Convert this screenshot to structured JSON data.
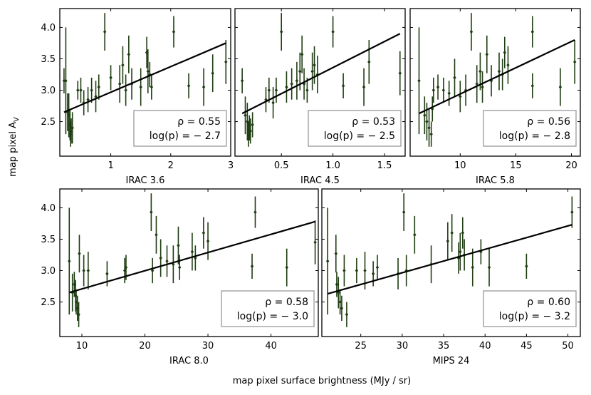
{
  "figure": {
    "ylabel": "map pixel A",
    "ylabel_sub": "V",
    "xlabel": "map pixel surface brightness (MJy / sr)"
  },
  "colors": {
    "points": "#1f3d12",
    "fit": "#000000",
    "legend_border": "#999999"
  },
  "chart_data": [
    {
      "type": "scatter",
      "xlabel": "IRAC 3.6",
      "xlim": [
        0.15,
        3.0
      ],
      "ylim": [
        1.95,
        4.3
      ],
      "xticks": [
        1,
        2,
        3
      ],
      "yticks": [
        2.5,
        3.0,
        3.5,
        4.0
      ],
      "fit": [
        [
          0.22,
          2.65
        ],
        [
          2.92,
          3.75
        ]
      ],
      "stats": {
        "rho": "ρ = 0.55",
        "logp": "log(p) = − 2.7"
      },
      "points": [
        {
          "x": 0.22,
          "y": 3.15,
          "e": 0.2
        },
        {
          "x": 0.25,
          "y": 3.15,
          "e": 0.85
        },
        {
          "x": 0.28,
          "y": 2.65,
          "e": 0.3
        },
        {
          "x": 0.3,
          "y": 2.6,
          "e": 0.35
        },
        {
          "x": 0.32,
          "y": 2.45,
          "e": 0.25
        },
        {
          "x": 0.33,
          "y": 2.3,
          "e": 0.2
        },
        {
          "x": 0.34,
          "y": 2.35,
          "e": 0.2
        },
        {
          "x": 0.36,
          "y": 2.4,
          "e": 0.25
        },
        {
          "x": 0.45,
          "y": 3.0,
          "e": 0.15
        },
        {
          "x": 0.5,
          "y": 3.0,
          "e": 0.2
        },
        {
          "x": 0.55,
          "y": 2.8,
          "e": 0.2
        },
        {
          "x": 0.62,
          "y": 2.85,
          "e": 0.2
        },
        {
          "x": 0.68,
          "y": 3.0,
          "e": 0.2
        },
        {
          "x": 0.75,
          "y": 2.9,
          "e": 0.25
        },
        {
          "x": 0.8,
          "y": 3.05,
          "e": 0.2
        },
        {
          "x": 0.9,
          "y": 3.93,
          "e": 0.3
        },
        {
          "x": 1.0,
          "y": 3.2,
          "e": 0.2
        },
        {
          "x": 1.15,
          "y": 3.1,
          "e": 0.3
        },
        {
          "x": 1.2,
          "y": 3.4,
          "e": 0.3
        },
        {
          "x": 1.25,
          "y": 3.0,
          "e": 0.25
        },
        {
          "x": 1.3,
          "y": 3.57,
          "e": 0.3
        },
        {
          "x": 1.35,
          "y": 3.1,
          "e": 0.25
        },
        {
          "x": 1.5,
          "y": 3.05,
          "e": 0.3
        },
        {
          "x": 1.6,
          "y": 3.6,
          "e": 0.25
        },
        {
          "x": 1.62,
          "y": 3.3,
          "e": 0.35
        },
        {
          "x": 1.65,
          "y": 3.25,
          "e": 0.2
        },
        {
          "x": 1.68,
          "y": 3.05,
          "e": 0.2
        },
        {
          "x": 2.05,
          "y": 3.93,
          "e": 0.25
        },
        {
          "x": 2.3,
          "y": 3.07,
          "e": 0.2
        },
        {
          "x": 2.55,
          "y": 3.05,
          "e": 0.3
        },
        {
          "x": 2.7,
          "y": 3.27,
          "e": 0.3
        },
        {
          "x": 2.92,
          "y": 3.45,
          "e": 0.35
        }
      ]
    },
    {
      "type": "scatter",
      "xlabel": "IRAC 4.5",
      "xlim": [
        0.05,
        1.7
      ],
      "ylim": [
        1.95,
        4.3
      ],
      "xticks": [
        0.5,
        1.0,
        1.5
      ],
      "yticks": [
        2.5,
        3.0,
        3.5,
        4.0
      ],
      "fit": [
        [
          0.12,
          2.63
        ],
        [
          1.65,
          3.9
        ]
      ],
      "stats": {
        "rho": "ρ = 0.53",
        "logp": "log(p) = − 2.5"
      },
      "points": [
        {
          "x": 0.12,
          "y": 3.15,
          "e": 0.2
        },
        {
          "x": 0.15,
          "y": 2.6,
          "e": 0.3
        },
        {
          "x": 0.17,
          "y": 2.5,
          "e": 0.3
        },
        {
          "x": 0.18,
          "y": 2.3,
          "e": 0.2
        },
        {
          "x": 0.19,
          "y": 2.4,
          "e": 0.2
        },
        {
          "x": 0.2,
          "y": 2.35,
          "e": 0.2
        },
        {
          "x": 0.22,
          "y": 2.45,
          "e": 0.2
        },
        {
          "x": 0.35,
          "y": 2.85,
          "e": 0.2
        },
        {
          "x": 0.38,
          "y": 3.0,
          "e": 0.2
        },
        {
          "x": 0.42,
          "y": 2.8,
          "e": 0.25
        },
        {
          "x": 0.45,
          "y": 3.0,
          "e": 0.2
        },
        {
          "x": 0.5,
          "y": 3.93,
          "e": 0.3
        },
        {
          "x": 0.55,
          "y": 3.05,
          "e": 0.25
        },
        {
          "x": 0.6,
          "y": 3.1,
          "e": 0.25
        },
        {
          "x": 0.65,
          "y": 3.15,
          "e": 0.3
        },
        {
          "x": 0.68,
          "y": 3.3,
          "e": 0.3
        },
        {
          "x": 0.7,
          "y": 3.57,
          "e": 0.3
        },
        {
          "x": 0.72,
          "y": 3.1,
          "e": 0.25
        },
        {
          "x": 0.75,
          "y": 3.0,
          "e": 0.2
        },
        {
          "x": 0.8,
          "y": 3.3,
          "e": 0.3
        },
        {
          "x": 0.82,
          "y": 3.4,
          "e": 0.3
        },
        {
          "x": 0.85,
          "y": 3.25,
          "e": 0.3
        },
        {
          "x": 1.0,
          "y": 3.93,
          "e": 0.25
        },
        {
          "x": 1.1,
          "y": 3.07,
          "e": 0.2
        },
        {
          "x": 1.3,
          "y": 3.05,
          "e": 0.3
        },
        {
          "x": 1.35,
          "y": 3.45,
          "e": 0.35
        },
        {
          "x": 1.65,
          "y": 3.27,
          "e": 0.35
        }
      ]
    },
    {
      "type": "scatter",
      "xlabel": "IRAC 5.8",
      "xlim": [
        5.5,
        20.8
      ],
      "ylim": [
        1.95,
        4.3
      ],
      "xticks": [
        10,
        15,
        20
      ],
      "yticks": [
        2.5,
        3.0,
        3.5,
        4.0
      ],
      "fit": [
        [
          6.3,
          2.63
        ],
        [
          20.3,
          3.8
        ]
      ],
      "stats": {
        "rho": "ρ = 0.56",
        "logp": "log(p) = − 2.8"
      },
      "points": [
        {
          "x": 6.3,
          "y": 3.15,
          "e": 0.85
        },
        {
          "x": 6.8,
          "y": 2.6,
          "e": 0.3
        },
        {
          "x": 7.0,
          "y": 2.5,
          "e": 0.3
        },
        {
          "x": 7.2,
          "y": 2.4,
          "e": 0.3
        },
        {
          "x": 7.4,
          "y": 2.3,
          "e": 0.2
        },
        {
          "x": 7.5,
          "y": 2.7,
          "e": 0.2
        },
        {
          "x": 7.6,
          "y": 3.0,
          "e": 0.2
        },
        {
          "x": 8.0,
          "y": 3.05,
          "e": 0.2
        },
        {
          "x": 8.5,
          "y": 3.0,
          "e": 0.2
        },
        {
          "x": 9.0,
          "y": 2.95,
          "e": 0.2
        },
        {
          "x": 9.5,
          "y": 3.2,
          "e": 0.3
        },
        {
          "x": 10.0,
          "y": 2.9,
          "e": 0.25
        },
        {
          "x": 10.5,
          "y": 3.0,
          "e": 0.25
        },
        {
          "x": 11.0,
          "y": 3.93,
          "e": 0.3
        },
        {
          "x": 11.5,
          "y": 3.1,
          "e": 0.3
        },
        {
          "x": 11.8,
          "y": 3.3,
          "e": 0.3
        },
        {
          "x": 12.0,
          "y": 3.05,
          "e": 0.25
        },
        {
          "x": 12.4,
          "y": 3.57,
          "e": 0.3
        },
        {
          "x": 12.8,
          "y": 3.15,
          "e": 0.25
        },
        {
          "x": 13.5,
          "y": 3.3,
          "e": 0.3
        },
        {
          "x": 13.8,
          "y": 3.25,
          "e": 0.25
        },
        {
          "x": 14.0,
          "y": 3.6,
          "e": 0.25
        },
        {
          "x": 14.3,
          "y": 3.4,
          "e": 0.3
        },
        {
          "x": 16.5,
          "y": 3.93,
          "e": 0.25
        },
        {
          "x": 16.5,
          "y": 3.07,
          "e": 0.2
        },
        {
          "x": 19.0,
          "y": 3.05,
          "e": 0.3
        },
        {
          "x": 20.3,
          "y": 3.45,
          "e": 0.35
        }
      ]
    },
    {
      "type": "scatter",
      "xlabel": "IRAC 8.0",
      "xlim": [
        6.5,
        47.5
      ],
      "ylim": [
        1.95,
        4.3
      ],
      "xticks": [
        10,
        20,
        30,
        40
      ],
      "yticks": [
        2.5,
        3.0,
        3.5,
        4.0
      ],
      "fit": [
        [
          8.0,
          2.65
        ],
        [
          47.0,
          3.78
        ]
      ],
      "stats": {
        "rho": "ρ = 0.58",
        "logp": "log(p) = − 3.0"
      },
      "points": [
        {
          "x": 8.0,
          "y": 3.15,
          "e": 0.85
        },
        {
          "x": 8.5,
          "y": 2.65,
          "e": 0.3
        },
        {
          "x": 8.8,
          "y": 2.78,
          "e": 0.2
        },
        {
          "x": 9.0,
          "y": 2.6,
          "e": 0.25
        },
        {
          "x": 9.1,
          "y": 2.5,
          "e": 0.2
        },
        {
          "x": 9.3,
          "y": 2.4,
          "e": 0.2
        },
        {
          "x": 9.5,
          "y": 2.3,
          "e": 0.2
        },
        {
          "x": 9.6,
          "y": 3.27,
          "e": 0.3
        },
        {
          "x": 10.3,
          "y": 3.0,
          "e": 0.25
        },
        {
          "x": 11.0,
          "y": 3.0,
          "e": 0.3
        },
        {
          "x": 14.0,
          "y": 2.95,
          "e": 0.2
        },
        {
          "x": 16.8,
          "y": 3.0,
          "e": 0.2
        },
        {
          "x": 17.0,
          "y": 3.05,
          "e": 0.2
        },
        {
          "x": 21.0,
          "y": 3.93,
          "e": 0.3
        },
        {
          "x": 21.2,
          "y": 3.0,
          "e": 0.2
        },
        {
          "x": 21.8,
          "y": 3.57,
          "e": 0.3
        },
        {
          "x": 22.5,
          "y": 3.2,
          "e": 0.3
        },
        {
          "x": 23.5,
          "y": 3.15,
          "e": 0.25
        },
        {
          "x": 24.5,
          "y": 3.1,
          "e": 0.3
        },
        {
          "x": 25.3,
          "y": 3.4,
          "e": 0.3
        },
        {
          "x": 25.5,
          "y": 3.05,
          "e": 0.2
        },
        {
          "x": 27.5,
          "y": 3.3,
          "e": 0.3
        },
        {
          "x": 28.0,
          "y": 3.2,
          "e": 0.2
        },
        {
          "x": 29.3,
          "y": 3.6,
          "e": 0.25
        },
        {
          "x": 30.0,
          "y": 3.47,
          "e": 0.3
        },
        {
          "x": 37.0,
          "y": 3.07,
          "e": 0.2
        },
        {
          "x": 37.5,
          "y": 3.93,
          "e": 0.25
        },
        {
          "x": 42.5,
          "y": 3.05,
          "e": 0.3
        },
        {
          "x": 47.0,
          "y": 3.45,
          "e": 0.35
        }
      ]
    },
    {
      "type": "scatter",
      "xlabel": "MIPS 24",
      "xlim": [
        20.3,
        51.5
      ],
      "ylim": [
        1.95,
        4.3
      ],
      "xticks": [
        20,
        25,
        30,
        35,
        40,
        45,
        50
      ],
      "yticks": [
        2.5,
        3.0,
        3.5,
        4.0
      ],
      "fit": [
        [
          21.0,
          2.63
        ],
        [
          50.5,
          3.73
        ]
      ],
      "stats": {
        "rho": "ρ = 0.60",
        "logp": "log(p) = − 3.2"
      },
      "points": [
        {
          "x": 21.0,
          "y": 3.15,
          "e": 0.85
        },
        {
          "x": 22.0,
          "y": 3.27,
          "e": 0.3
        },
        {
          "x": 22.1,
          "y": 2.78,
          "e": 0.2
        },
        {
          "x": 22.3,
          "y": 2.65,
          "e": 0.25
        },
        {
          "x": 22.5,
          "y": 2.5,
          "e": 0.2
        },
        {
          "x": 22.7,
          "y": 2.4,
          "e": 0.2
        },
        {
          "x": 23.0,
          "y": 3.0,
          "e": 0.25
        },
        {
          "x": 23.3,
          "y": 2.3,
          "e": 0.2
        },
        {
          "x": 24.5,
          "y": 3.0,
          "e": 0.2
        },
        {
          "x": 25.5,
          "y": 3.0,
          "e": 0.3
        },
        {
          "x": 26.5,
          "y": 2.95,
          "e": 0.2
        },
        {
          "x": 27.0,
          "y": 3.05,
          "e": 0.2
        },
        {
          "x": 29.5,
          "y": 2.95,
          "e": 0.25
        },
        {
          "x": 30.2,
          "y": 3.93,
          "e": 0.3
        },
        {
          "x": 30.5,
          "y": 3.0,
          "e": 0.25
        },
        {
          "x": 31.5,
          "y": 3.57,
          "e": 0.3
        },
        {
          "x": 33.5,
          "y": 3.1,
          "e": 0.3
        },
        {
          "x": 35.5,
          "y": 3.47,
          "e": 0.3
        },
        {
          "x": 36.0,
          "y": 3.6,
          "e": 0.3
        },
        {
          "x": 36.8,
          "y": 3.2,
          "e": 0.25
        },
        {
          "x": 37.0,
          "y": 3.3,
          "e": 0.3
        },
        {
          "x": 37.3,
          "y": 3.6,
          "e": 0.25
        },
        {
          "x": 37.5,
          "y": 3.25,
          "e": 0.25
        },
        {
          "x": 38.5,
          "y": 3.05,
          "e": 0.3
        },
        {
          "x": 39.5,
          "y": 3.3,
          "e": 0.2
        },
        {
          "x": 40.5,
          "y": 3.05,
          "e": 0.3
        },
        {
          "x": 45.0,
          "y": 3.07,
          "e": 0.2
        },
        {
          "x": 50.5,
          "y": 3.93,
          "e": 0.25
        }
      ]
    }
  ]
}
